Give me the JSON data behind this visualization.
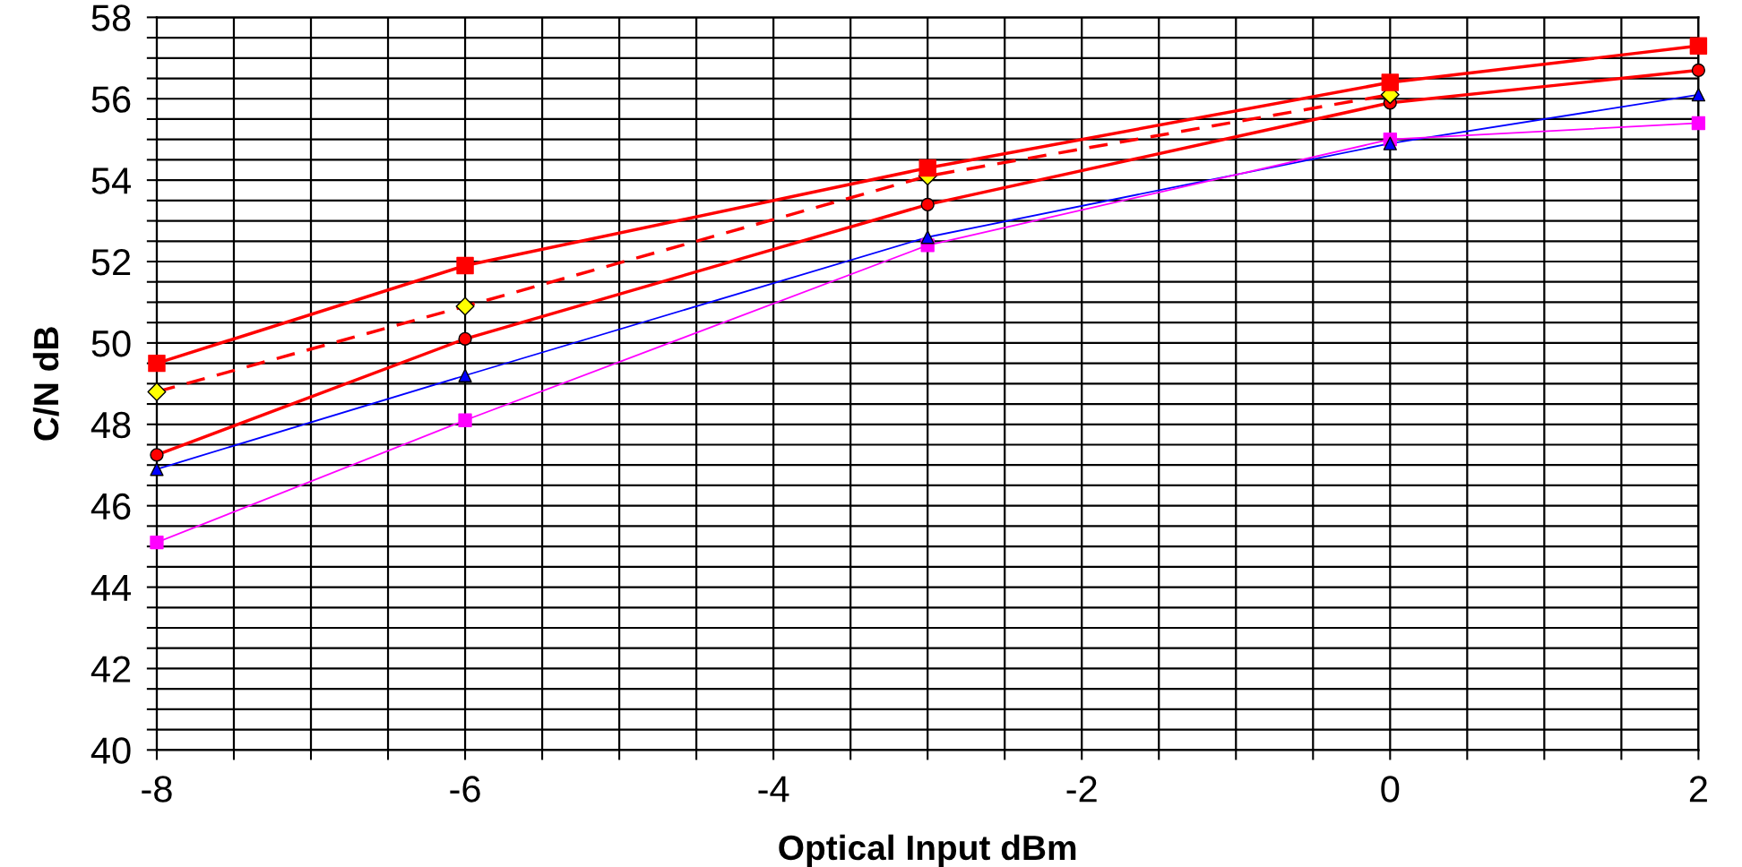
{
  "chart_data": {
    "type": "line",
    "xlabel": "Optical Input dBm",
    "ylabel": "C/N dB",
    "x": [
      -8,
      -6,
      -3,
      0,
      2
    ],
    "xlim": [
      -8,
      2
    ],
    "ylim": [
      40,
      58
    ],
    "xticks": [
      -8,
      {
        "value": -7.5,
        "label": null
      },
      {
        "value": -7,
        "label": null
      },
      {
        "value": -6.5,
        "label": null
      },
      -6,
      {
        "value": -5.5,
        "label": null
      },
      {
        "value": -5,
        "label": null
      },
      {
        "value": -4.5,
        "label": null
      },
      -4,
      {
        "value": -3.5,
        "label": null
      },
      {
        "value": -3,
        "label": null
      },
      {
        "value": -2.5,
        "label": null
      },
      -2,
      {
        "value": -1.5,
        "label": null
      },
      {
        "value": -1,
        "label": null
      },
      {
        "value": -0.5,
        "label": null
      },
      0,
      {
        "value": 0.5,
        "label": null
      },
      {
        "value": 1,
        "label": null
      },
      {
        "value": 1.5,
        "label": null
      },
      2
    ],
    "yticks": [
      40,
      {
        "value": 40.5,
        "label": null
      },
      {
        "value": 41,
        "label": null
      },
      {
        "value": 41.5,
        "label": null
      },
      42,
      {
        "value": 42.5,
        "label": null
      },
      {
        "value": 43,
        "label": null
      },
      {
        "value": 43.5,
        "label": null
      },
      44,
      {
        "value": 44.5,
        "label": null
      },
      {
        "value": 45,
        "label": null
      },
      {
        "value": 45.5,
        "label": null
      },
      46,
      {
        "value": 46.5,
        "label": null
      },
      {
        "value": 47,
        "label": null
      },
      {
        "value": 47.5,
        "label": null
      },
      48,
      {
        "value": 48.5,
        "label": null
      },
      {
        "value": 49,
        "label": null
      },
      {
        "value": 49.5,
        "label": null
      },
      50,
      {
        "value": 50.5,
        "label": null
      },
      {
        "value": 51,
        "label": null
      },
      {
        "value": 51.5,
        "label": null
      },
      52,
      {
        "value": 52.5,
        "label": null
      },
      {
        "value": 53,
        "label": null
      },
      {
        "value": 53.5,
        "label": null
      },
      54,
      {
        "value": 54.5,
        "label": null
      },
      {
        "value": 55,
        "label": null
      },
      {
        "value": 55.5,
        "label": null
      },
      56,
      {
        "value": 56.5,
        "label": null
      },
      {
        "value": 57,
        "label": null
      },
      {
        "value": 57.5,
        "label": null
      },
      58
    ],
    "grid": true,
    "legend": false,
    "series": [
      {
        "color": "#ff0000",
        "marker": "square",
        "line_style": "solid",
        "values": [
          49.5,
          51.9,
          54.3,
          56.4,
          57.3
        ]
      },
      {
        "color": "#ff0000",
        "colors": [
          "#ffff00",
          "#ffff00",
          "#ffff00",
          "#ffff00",
          "#ffff00"
        ],
        "marker": "diamond",
        "line_style": "dashed",
        "values": [
          48.8,
          50.9,
          54.1,
          56.1,
          null
        ]
      },
      {
        "color": "#ff0000",
        "marker": "circle",
        "line_style": "solid",
        "values": [
          47.25,
          50.1,
          53.4,
          55.9,
          56.7
        ]
      },
      {
        "color": "#0000ff",
        "marker": "triangle",
        "line_style": "solid",
        "values": [
          46.9,
          49.2,
          52.6,
          54.9,
          56.1
        ]
      },
      {
        "color": "#ff00ff",
        "marker": "square",
        "line_style": "solid",
        "values": [
          45.1,
          48.1,
          52.4,
          55.0,
          55.4
        ]
      }
    ]
  }
}
